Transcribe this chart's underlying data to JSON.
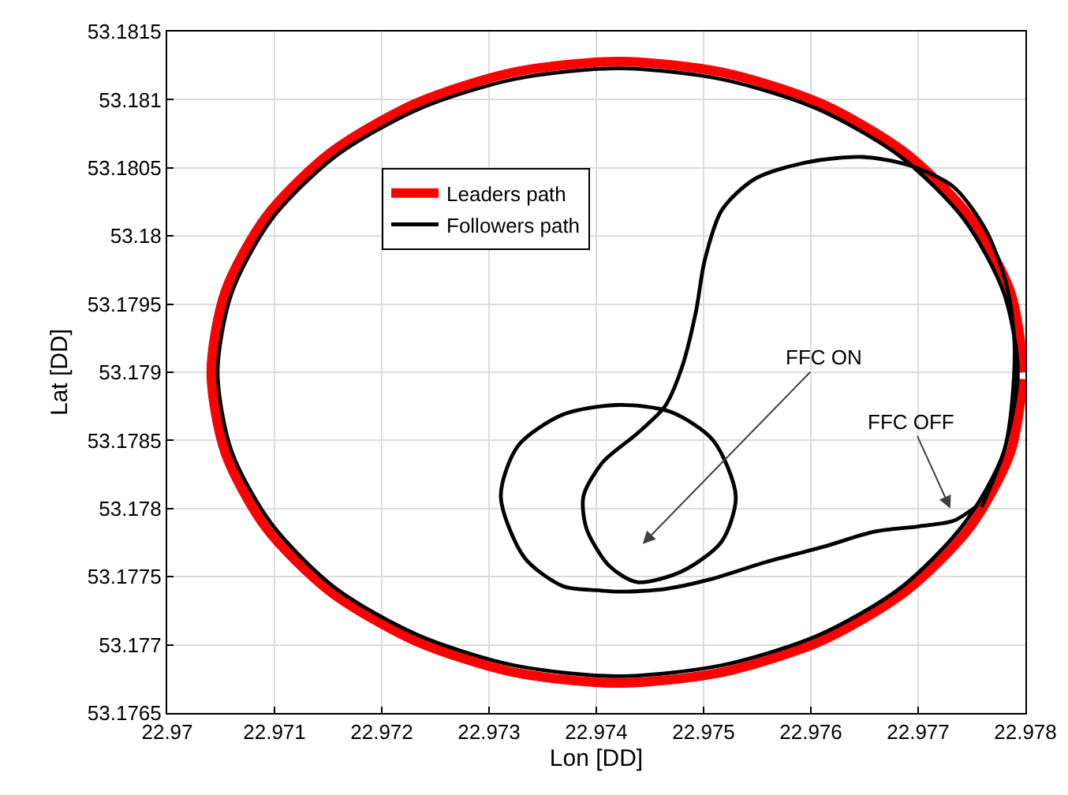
{
  "chart_data": {
    "type": "line",
    "xlabel": "Lon [DD]",
    "ylabel": "Lat [DD]",
    "xlim": [
      22.97,
      22.978
    ],
    "xticks": [
      22.97,
      22.971,
      22.972,
      22.973,
      22.974,
      22.975,
      22.976,
      22.977,
      22.978
    ],
    "ylim": [
      53.1765,
      53.1815
    ],
    "yticks": [
      53.1765,
      53.177,
      53.1775,
      53.178,
      53.1785,
      53.179,
      53.1795,
      53.18,
      53.1805,
      53.181,
      53.1815
    ],
    "grid": true,
    "legend": "top left",
    "marker": "none",
    "line_style": "solid",
    "series": [
      {
        "name": "Leaders path",
        "color": "#ff0000",
        "x": [
          22.97799,
          22.97786,
          22.97748,
          22.97688,
          22.9761,
          22.97518,
          22.9742,
          22.97322,
          22.97231,
          22.97152,
          22.97092,
          22.97054,
          22.97041,
          22.97054,
          22.97092,
          22.97152,
          22.97231,
          22.97322,
          22.9742,
          22.97518,
          22.9761,
          22.97688,
          22.97748,
          22.97786,
          22.97798
        ],
        "values": [
          53.179,
          53.17959,
          53.18014,
          53.18061,
          53.18097,
          53.1812,
          53.18128,
          53.1812,
          53.18097,
          53.18061,
          53.18014,
          53.17959,
          53.179,
          53.17841,
          53.17786,
          53.17739,
          53.17703,
          53.1768,
          53.17672,
          53.1768,
          53.17703,
          53.17739,
          53.17786,
          53.17841,
          53.17895
        ]
      },
      {
        "name": "Followers path",
        "color": "#000000",
        "x": [
          22.97755,
          22.97733,
          22.97701,
          22.97659,
          22.97612,
          22.97559,
          22.97506,
          22.97464,
          22.97422,
          22.97401,
          22.97369,
          22.97333,
          22.97311,
          22.97327,
          22.97369,
          22.9742,
          22.97469,
          22.97509,
          22.9753,
          22.97517,
          22.9748,
          22.97438,
          22.97412,
          22.97391,
          22.97388,
          22.97406,
          22.97438,
          22.97464,
          22.9748,
          22.97493,
          22.97501,
          22.97517,
          22.97548,
          22.97596,
          22.97648,
          22.97691,
          22.97733,
          22.97764,
          22.97783,
          22.9779,
          22.9778,
          22.97743,
          22.97684,
          22.97607,
          22.97517,
          22.9742,
          22.97323,
          22.97234,
          22.97156,
          22.97097,
          22.9706,
          22.97047,
          22.9706,
          22.97097,
          22.97156,
          22.97234,
          22.97323,
          22.9742,
          22.97517,
          22.97607,
          22.97684,
          22.97743,
          22.9778,
          22.97793,
          22.9778,
          22.97759
        ],
        "values": [
          53.17802,
          53.17791,
          53.17787,
          53.17783,
          53.17772,
          53.17761,
          53.17748,
          53.17741,
          53.17739,
          53.1774,
          53.17743,
          53.17764,
          53.17809,
          53.17846,
          53.17869,
          53.17876,
          53.17871,
          53.1785,
          53.17809,
          53.17776,
          53.17754,
          53.17746,
          53.17758,
          53.17785,
          53.17809,
          53.17834,
          53.17855,
          53.17875,
          53.17904,
          53.17945,
          53.17982,
          53.18019,
          53.18042,
          53.18054,
          53.18058,
          53.18052,
          53.18036,
          53.18003,
          53.17962,
          53.17916,
          53.17842,
          53.17789,
          53.17742,
          53.17707,
          53.17685,
          53.17677,
          53.17685,
          53.17707,
          53.17742,
          53.17789,
          53.17842,
          53.179,
          53.17958,
          53.18012,
          53.18058,
          53.18093,
          53.18115,
          53.18123,
          53.18115,
          53.18093,
          53.18058,
          53.18012,
          53.17958,
          53.179,
          53.17842,
          53.17801
        ]
      }
    ],
    "annotations": [
      "FFC ON",
      "FFC OFF"
    ]
  }
}
